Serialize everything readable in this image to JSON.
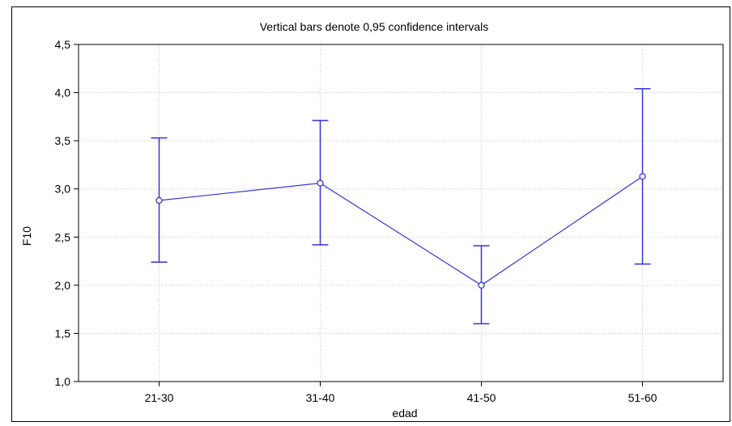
{
  "chart_data": {
    "type": "line",
    "title": "Vertical bars denote 0,95 confidence intervals",
    "xlabel": "edad",
    "ylabel": "F10",
    "categories": [
      "21-30",
      "31-40",
      "41-50",
      "51-60"
    ],
    "series": [
      {
        "values": [
          2.88,
          3.06,
          2.0,
          3.13
        ],
        "ci_low": [
          2.24,
          2.42,
          1.6,
          2.22
        ],
        "ci_high": [
          3.53,
          3.71,
          2.41,
          4.04
        ]
      }
    ],
    "ylim": [
      1.0,
      4.5
    ],
    "yticks": [
      "1,0",
      "1,5",
      "2,0",
      "2,5",
      "3,0",
      "3,5",
      "4,0",
      "4,5"
    ],
    "grid": true,
    "colors": {
      "series": "#3333dd",
      "grid": "#c8c8c8",
      "frame": "#000000"
    }
  }
}
